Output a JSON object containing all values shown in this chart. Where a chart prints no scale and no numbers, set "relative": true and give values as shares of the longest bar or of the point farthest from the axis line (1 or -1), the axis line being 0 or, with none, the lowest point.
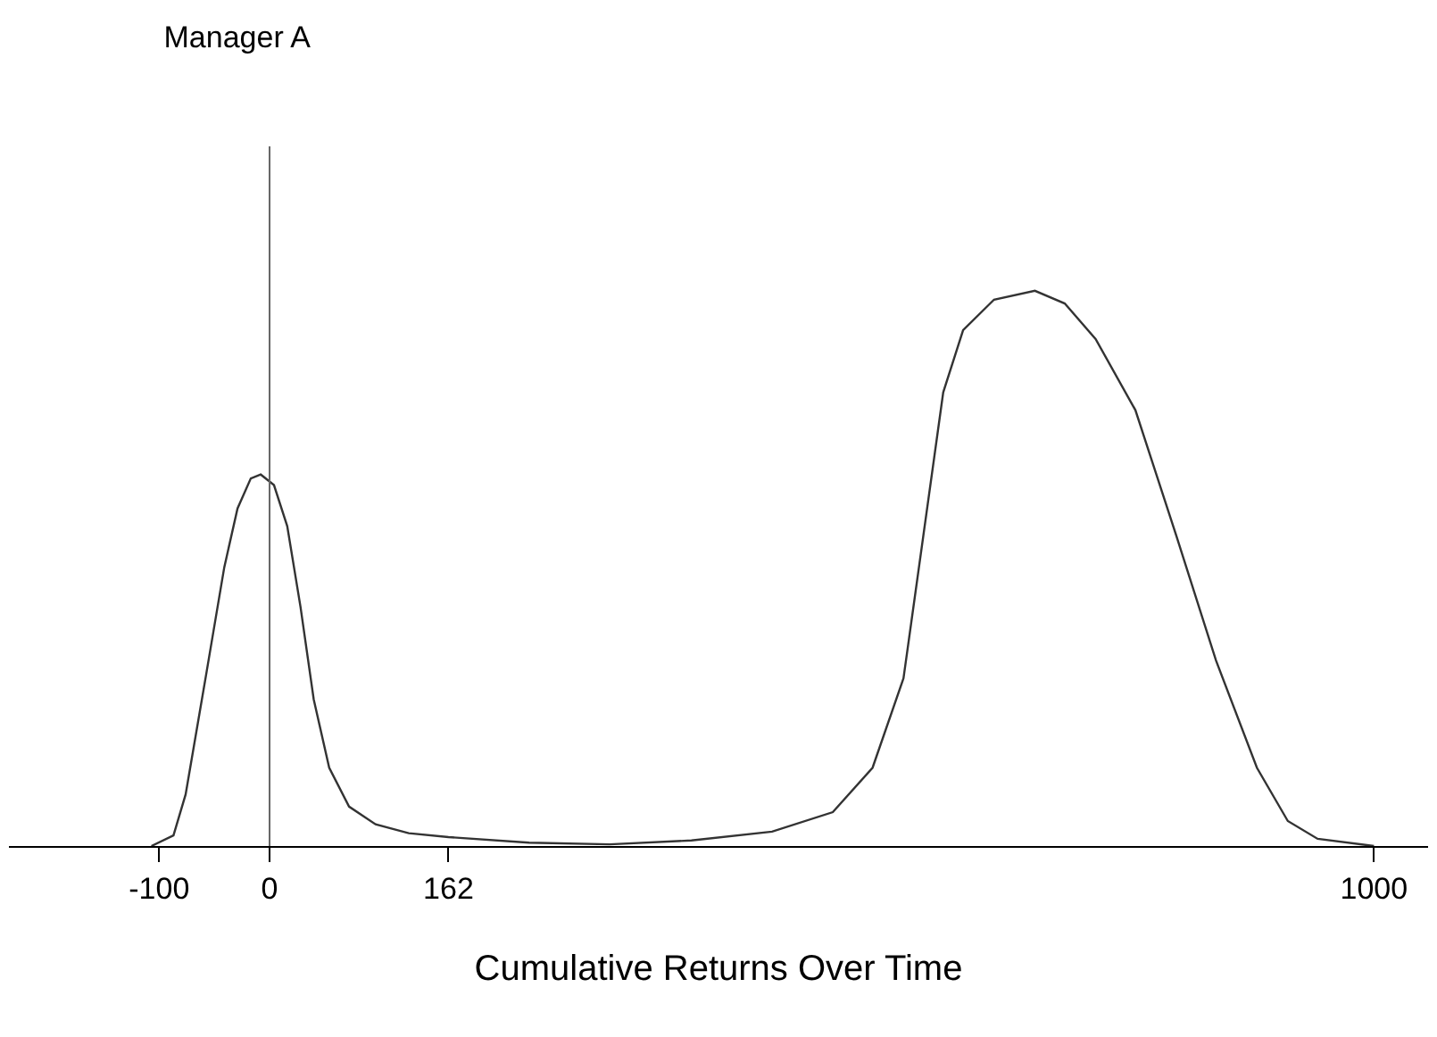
{
  "chart_data": {
    "type": "line",
    "title": "Manager A",
    "xlabel": "Cumulative Returns Over Time",
    "relative": true,
    "xlim": [
      -236,
      1049
    ],
    "xticks": [
      -100,
      0,
      162,
      1000
    ],
    "series": [
      {
        "color": "#333333",
        "x": [
          -107,
          -87,
          -76,
          -58,
          -41,
          -29,
          -17,
          -8,
          4,
          16,
          28,
          40,
          54,
          72,
          96,
          126,
          162,
          235,
          308,
          382,
          455,
          510,
          546,
          574,
          592,
          610,
          628,
          656,
          693,
          720,
          748,
          784,
          821,
          857,
          894,
          922,
          949,
          1000
        ],
        "values": [
          0,
          0.019,
          0.093,
          0.302,
          0.502,
          0.608,
          0.662,
          0.669,
          0.65,
          0.576,
          0.431,
          0.264,
          0.141,
          0.071,
          0.039,
          0.023,
          0.016,
          0.006,
          0.003,
          0.01,
          0.026,
          0.061,
          0.141,
          0.302,
          0.559,
          0.817,
          0.929,
          0.984,
          1,
          0.977,
          0.913,
          0.785,
          0.559,
          0.334,
          0.141,
          0.045,
          0.013,
          0
        ]
      }
    ],
    "ref_lines": [
      {
        "axis": "x",
        "value": 0,
        "color": "#666666"
      }
    ],
    "marker": "none",
    "line_style": "solid"
  }
}
